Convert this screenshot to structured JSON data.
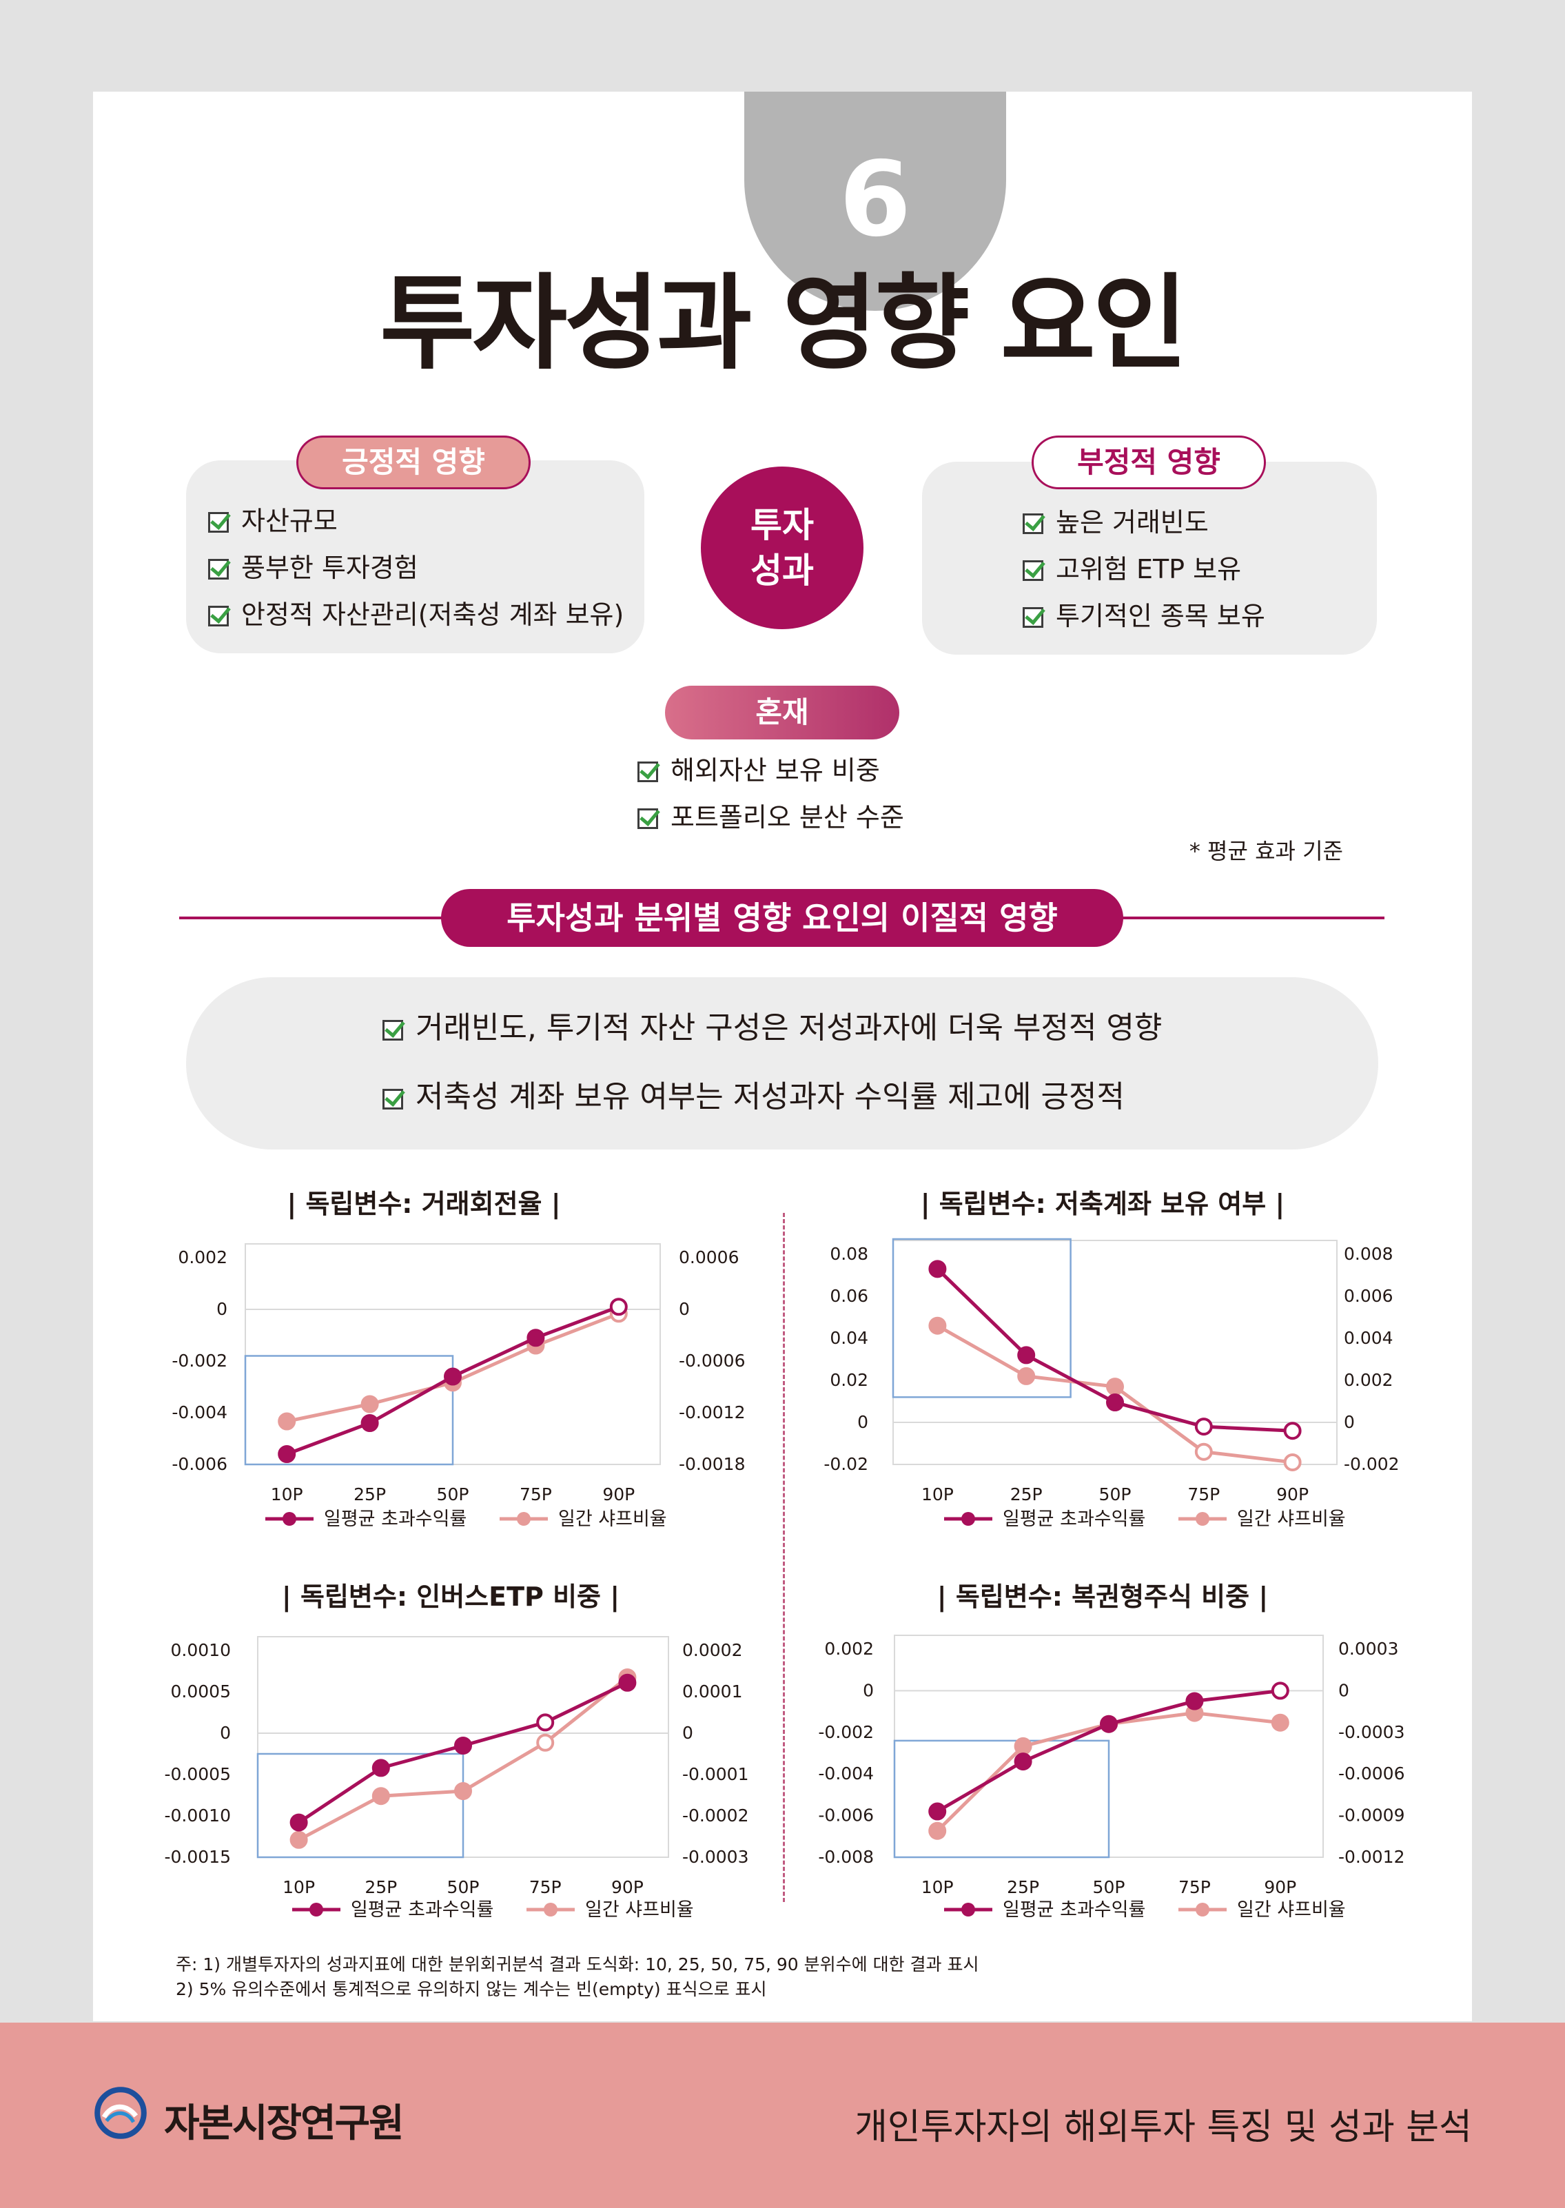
{
  "page_number": "6",
  "title": "투자성과 영향 요인",
  "positive": {
    "label": "긍정적 영향",
    "items": [
      "자산규모",
      "풍부한 투자경험",
      "안정적 자산관리(저축성 계좌 보유)"
    ]
  },
  "center_label": [
    "투자",
    "성과"
  ],
  "negative": {
    "label": "부정적 영향",
    "items": [
      "높은 거래빈도",
      "고위험 ETP 보유",
      "투기적인 종목 보유"
    ]
  },
  "mixed": {
    "label": "혼재",
    "items": [
      "해외자산 보유 비중",
      "포트폴리오 분산 수준"
    ]
  },
  "note": "* 평균 효과 기준",
  "section_title": "투자성과 분위별 영향 요인의 이질적 영향",
  "findings": [
    "거래빈도, 투기적 자산 구성은 저성과자에 더욱 부정적 영향",
    "저축성 계좌 보유 여부는 저성과자 수익률 제고에 긍정적"
  ],
  "legend": {
    "series1": "일평균 초과수익률",
    "series2": "일간 샤프비율"
  },
  "colors": {
    "series1": "#a80f5a",
    "series2": "#e69b98",
    "highlight": "#7fa6d6",
    "accent": "#a80f5a"
  },
  "chart_data": [
    {
      "type": "line",
      "title": "| 독립변수: 거래회전율 |",
      "categories": [
        "10P",
        "25P",
        "50P",
        "75P",
        "90P"
      ],
      "left_ticks": [
        "0.002",
        "0",
        "-0.002",
        "-0.004",
        "-0.006"
      ],
      "right_ticks": [
        "0.0006",
        "0",
        "-0.0006",
        "-0.0012",
        "-0.0018"
      ],
      "ylim_left": [
        -0.006,
        0.002
      ],
      "ylim_right": [
        -0.0018,
        0.0006
      ],
      "highlight": [
        0,
        2
      ],
      "series": [
        {
          "name": "일평균 초과수익률",
          "axis": "left",
          "values": [
            -0.0056,
            -0.0044,
            -0.0026,
            -0.0011,
            0.0001
          ],
          "hollow": [
            false,
            false,
            false,
            false,
            true
          ]
        },
        {
          "name": "일간 샤프비율",
          "axis": "right",
          "values": [
            -0.0013,
            -0.0011,
            -0.00085,
            -0.00042,
            -5e-05
          ],
          "hollow": [
            false,
            false,
            false,
            false,
            true
          ]
        }
      ]
    },
    {
      "type": "line",
      "title": "| 독립변수: 저축계좌 보유 여부 |",
      "categories": [
        "10P",
        "25P",
        "50P",
        "75P",
        "90P"
      ],
      "left_ticks": [
        "0.08",
        "0.06",
        "0.04",
        "0.02",
        "0",
        "-0.02"
      ],
      "right_ticks": [
        "0.008",
        "0.006",
        "0.004",
        "0.002",
        "0",
        "-0.002"
      ],
      "ylim_left": [
        -0.02,
        0.08
      ],
      "ylim_right": [
        -0.002,
        0.008
      ],
      "highlight": [
        0,
        1.5
      ],
      "series": [
        {
          "name": "일평균 초과수익률",
          "axis": "left",
          "values": [
            0.073,
            0.032,
            0.0095,
            -0.002,
            -0.004
          ],
          "hollow": [
            false,
            false,
            false,
            true,
            true
          ]
        },
        {
          "name": "일간 샤프비율",
          "axis": "right",
          "values": [
            0.0046,
            0.0022,
            0.0017,
            -0.0014,
            -0.0019
          ],
          "hollow": [
            false,
            false,
            false,
            true,
            true
          ]
        }
      ]
    },
    {
      "type": "line",
      "title": "| 독립변수: 인버스ETP 비중 |",
      "categories": [
        "10P",
        "25P",
        "50P",
        "75P",
        "90P"
      ],
      "left_ticks": [
        "0.0010",
        "0.0005",
        "0",
        "-0.0005",
        "-0.0010",
        "-0.0015"
      ],
      "right_ticks": [
        "0.0002",
        "0.0001",
        "0",
        "-0.0001",
        "-0.0002",
        "-0.0003"
      ],
      "ylim_left": [
        -0.0015,
        0.001
      ],
      "ylim_right": [
        -0.0003,
        0.0002
      ],
      "highlight": [
        -0.3,
        2
      ],
      "series": [
        {
          "name": "일평균 초과수익률",
          "axis": "left",
          "values": [
            -0.00108,
            -0.00042,
            -0.00015,
            0.00013,
            0.00061
          ],
          "hollow": [
            false,
            false,
            false,
            true,
            false
          ]
        },
        {
          "name": "일간 샤프비율",
          "axis": "right",
          "values": [
            -0.000258,
            -0.000152,
            -0.00014,
            -2.3e-05,
            0.000135
          ],
          "hollow": [
            false,
            false,
            false,
            true,
            false
          ]
        }
      ]
    },
    {
      "type": "line",
      "title": "| 독립변수: 복권형주식 비중 |",
      "categories": [
        "10P",
        "25P",
        "50P",
        "75P",
        "90P"
      ],
      "left_ticks": [
        "0.002",
        "0",
        "-0.002",
        "-0.004",
        "-0.006",
        "-0.008"
      ],
      "right_ticks": [
        "0.0003",
        "0",
        "-0.0003",
        "-0.0006",
        "-0.0009",
        "-0.0012"
      ],
      "ylim_left": [
        -0.008,
        0.002
      ],
      "ylim_right": [
        -0.0012,
        0.0003
      ],
      "highlight": [
        -0.5,
        2
      ],
      "series": [
        {
          "name": "일평균 초과수익률",
          "axis": "left",
          "values": [
            -0.0058,
            -0.0034,
            -0.0016,
            -0.0005,
            0.0
          ],
          "hollow": [
            false,
            false,
            false,
            false,
            true
          ]
        },
        {
          "name": "일간 샤프비율",
          "axis": "right",
          "values": [
            -0.00101,
            -0.0004,
            -0.00024,
            -0.00016,
            -0.00023
          ],
          "hollow": [
            false,
            false,
            false,
            false,
            false
          ]
        }
      ]
    }
  ],
  "footnote": [
    "주:  1) 개별투자자의 성과지표에 대한 분위회귀분석 결과 도식화: 10, 25, 50, 75, 90 분위수에 대한 결과 표시",
    "       2) 5% 유의수준에서 통계적으로 유의하지 않는 계수는 빈(empty) 표식으로 표시"
  ],
  "footer": {
    "logo_text": "자본시장연구원",
    "report_title": "개인투자자의 해외투자 특징 및 성과 분석"
  }
}
